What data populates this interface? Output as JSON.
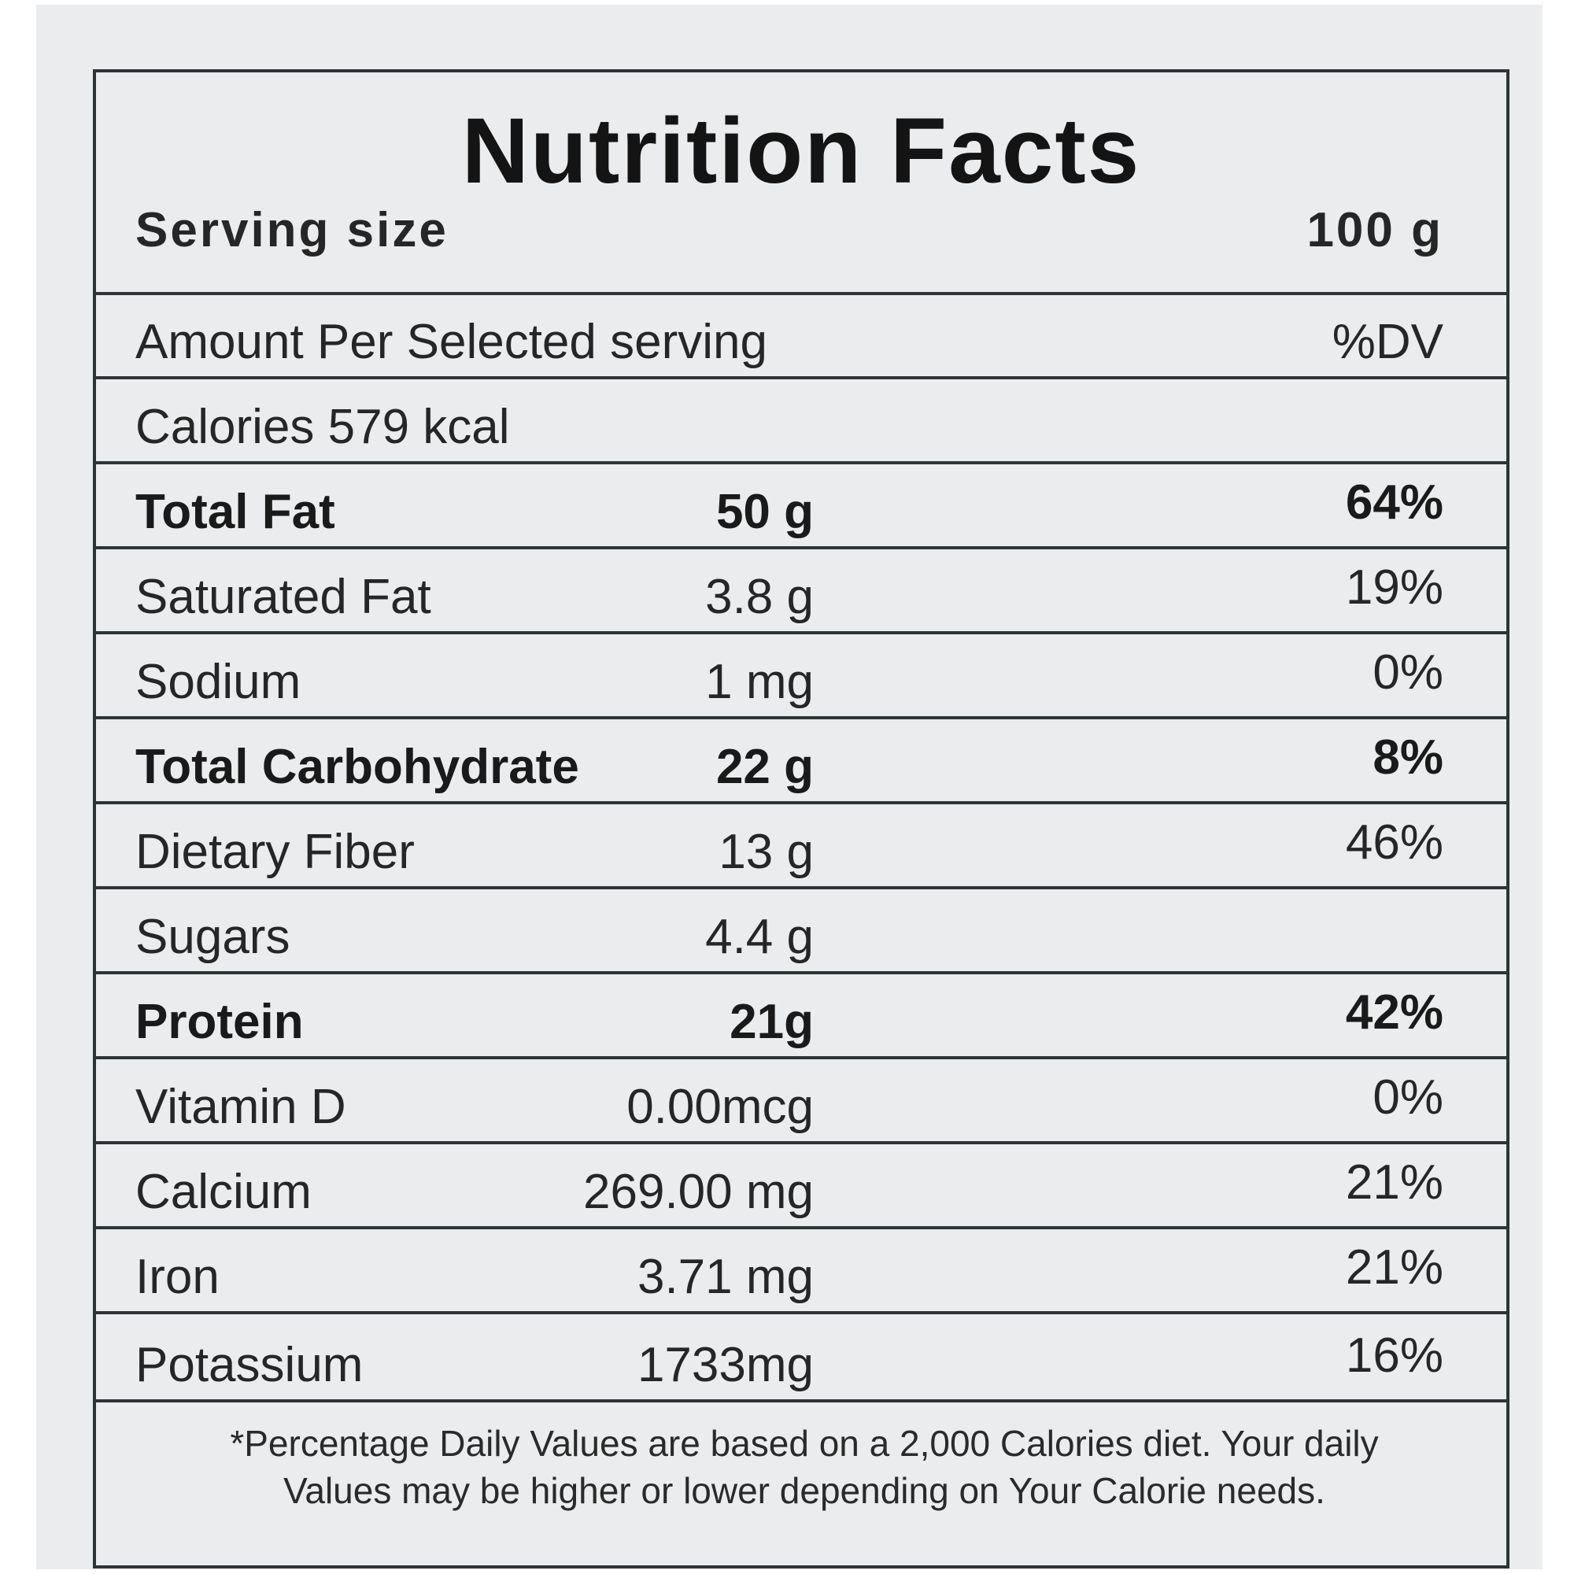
{
  "label": {
    "title": "Nutrition Facts",
    "serving_size_label": "Serving size",
    "serving_size_value": "100 g",
    "amount_per_label": "Amount Per Selected serving",
    "dv_header": "%DV",
    "calories_text": "Calories 579 kcal",
    "nutrients": [
      {
        "name": "Total Fat",
        "amount": "50 g",
        "dv": "64%",
        "bold": true
      },
      {
        "name": "Saturated Fat",
        "amount": "3.8 g",
        "dv": "19%",
        "bold": false
      },
      {
        "name": "Sodium",
        "amount": "1 mg",
        "dv": "0%",
        "bold": false
      },
      {
        "name": "Total Carbohydrate",
        "amount": "22 g",
        "dv": "8%",
        "bold": true
      },
      {
        "name": "Dietary Fiber",
        "amount": "13 g",
        "dv": "46%",
        "bold": false
      },
      {
        "name": "Sugars",
        "amount": "4.4 g",
        "dv": "",
        "bold": false
      },
      {
        "name": "Protein",
        "amount": "21g",
        "dv": "42%",
        "bold": true
      },
      {
        "name": "Vitamin D",
        "amount": "0.00mcg",
        "dv": "0%",
        "bold": false
      },
      {
        "name": "Calcium",
        "amount": "269.00 mg",
        "dv": "21%",
        "bold": false
      },
      {
        "name": "Iron",
        "amount": "3.71 mg",
        "dv": "21%",
        "bold": false
      },
      {
        "name": "Potassium",
        "amount": "1733mg",
        "dv": "16%",
        "bold": false
      }
    ],
    "footnote_line1": "*Percentage Daily Values are based on a 2,000 Calories diet. Your daily",
    "footnote_line2": "Values may be higher or lower depending on Your Calorie needs."
  }
}
